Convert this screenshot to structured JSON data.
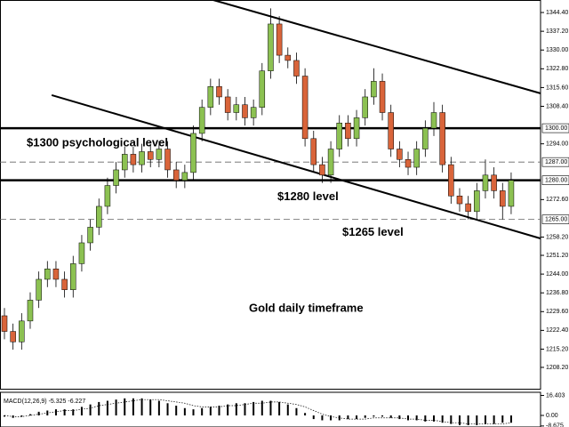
{
  "chart_data": [
    {
      "type": "candlestick",
      "open": [
        1228,
        1222,
        1218,
        1226,
        1234,
        1242,
        1246,
        1242,
        1238,
        1248,
        1256,
        1262,
        1270,
        1278,
        1284,
        1290,
        1286,
        1291,
        1288,
        1292,
        1284,
        1280,
        1283,
        1298,
        1308,
        1316,
        1312,
        1306,
        1309,
        1304,
        1308,
        1322,
        1340,
        1328,
        1326,
        1320,
        1296,
        1286,
        1282,
        1292,
        1302,
        1296,
        1304,
        1312,
        1318,
        1306,
        1292,
        1288,
        1285,
        1292,
        1300,
        1306,
        1286,
        1274,
        1271,
        1268,
        1276,
        1282,
        1276,
        1270
      ],
      "high": [
        1231,
        1225,
        1229,
        1237,
        1245,
        1249,
        1249,
        1245,
        1251,
        1259,
        1265,
        1273,
        1281,
        1287,
        1293,
        1293,
        1294,
        1294,
        1295,
        1295,
        1287,
        1286,
        1301,
        1311,
        1319,
        1319,
        1315,
        1312,
        1312,
        1311,
        1325,
        1346,
        1343,
        1331,
        1329,
        1323,
        1299,
        1289,
        1295,
        1305,
        1305,
        1307,
        1315,
        1323,
        1321,
        1309,
        1295,
        1291,
        1295,
        1303,
        1310,
        1309,
        1289,
        1277,
        1274,
        1279,
        1288,
        1285,
        1279,
        1283
      ],
      "low": [
        1219,
        1215,
        1215,
        1223,
        1231,
        1239,
        1239,
        1235,
        1235,
        1245,
        1253,
        1259,
        1267,
        1275,
        1281,
        1283,
        1283,
        1285,
        1285,
        1281,
        1277,
        1277,
        1280,
        1295,
        1305,
        1309,
        1303,
        1303,
        1301,
        1301,
        1305,
        1319,
        1325,
        1323,
        1317,
        1293,
        1283,
        1279,
        1279,
        1289,
        1293,
        1293,
        1301,
        1309,
        1303,
        1289,
        1285,
        1282,
        1282,
        1289,
        1297,
        1283,
        1271,
        1268,
        1265,
        1265,
        1273,
        1273,
        1265,
        1267
      ],
      "close": [
        1222,
        1218,
        1226,
        1234,
        1242,
        1246,
        1242,
        1238,
        1248,
        1256,
        1262,
        1270,
        1278,
        1284,
        1290,
        1286,
        1291,
        1288,
        1292,
        1284,
        1280,
        1283,
        1298,
        1308,
        1316,
        1312,
        1306,
        1309,
        1304,
        1308,
        1322,
        1340,
        1328,
        1326,
        1320,
        1296,
        1286,
        1282,
        1292,
        1302,
        1296,
        1304,
        1312,
        1318,
        1306,
        1292,
        1288,
        1285,
        1292,
        1300,
        1306,
        1286,
        1274,
        1271,
        1268,
        1276,
        1282,
        1276,
        1270,
        1280
      ],
      "up_color": "#8cc152",
      "down_color": "#d9643a",
      "ylim": [
        1205.8,
        1349.2
      ],
      "yticks": [
        {
          "value": 1344.4,
          "label": "1344.40"
        },
        {
          "value": 1337.2,
          "label": "1337.20"
        },
        {
          "value": 1330,
          "label": "1330.00"
        },
        {
          "value": 1322.8,
          "label": "1322.80"
        },
        {
          "value": 1315.6,
          "label": "1315.60"
        },
        {
          "value": 1308.4,
          "label": "1308.40"
        },
        {
          "value": 1294,
          "label": "1294.00"
        },
        {
          "value": 1272.6,
          "label": "1272.60"
        },
        {
          "value": 1258.2,
          "label": "1258.20"
        },
        {
          "value": 1251.2,
          "label": "1251.20"
        },
        {
          "value": 1244,
          "label": "1244.00"
        },
        {
          "value": 1236.8,
          "label": "1236.80"
        },
        {
          "value": 1229.6,
          "label": "1229.60"
        },
        {
          "value": 1222.4,
          "label": "1222.40"
        },
        {
          "value": 1215.2,
          "label": "1215.20"
        },
        {
          "value": 1208.2,
          "label": "1208.20"
        }
      ],
      "levels": [
        {
          "value": 1300,
          "label": "1300.00",
          "style": "solid",
          "text": "$1300 psychological level"
        },
        {
          "value": 1287,
          "label": "1287.00",
          "style": "dashed"
        },
        {
          "value": 1280,
          "label": "1280.00",
          "style": "solid",
          "text": "$1280 level"
        },
        {
          "value": 1265,
          "label": "1265.00",
          "style": "dashed",
          "text": "$1265 level"
        }
      ],
      "trendlines": [
        {
          "x": [
            24.3,
            62.4
          ],
          "y": [
            1349.2,
            1313.4
          ]
        },
        {
          "x": [
            5.5,
            62.4
          ],
          "y": [
            1312.7,
            1257.7
          ]
        }
      ],
      "annotation": "Gold daily timeframe"
    },
    {
      "type": "macd",
      "title": "MACD(12,26,9) -5.325 -6.227",
      "ylim": [
        -9.5,
        17.5
      ],
      "yticks": [
        {
          "value": 16.403,
          "label": "16.403"
        },
        {
          "value": 0,
          "label": "0.00"
        },
        {
          "value": -8.675,
          "label": "-8.675"
        }
      ],
      "series": [
        {
          "style": "histogram",
          "color": "#000000",
          "values": [
            -1,
            -2,
            -1,
            1,
            3,
            4,
            5,
            5,
            5,
            7,
            9,
            11,
            12,
            13,
            14,
            14,
            14,
            13,
            12,
            10,
            8,
            6,
            5,
            6,
            7,
            8,
            9,
            10,
            10,
            11,
            12,
            12,
            11,
            9,
            6,
            2,
            -3,
            -4,
            -4,
            -4,
            -3,
            -3,
            -2,
            -1,
            -1,
            -2,
            -3,
            -4,
            -4,
            -5,
            -5,
            -6,
            -7,
            -8,
            -8,
            -8,
            -7,
            -7,
            -6,
            -6
          ]
        },
        {
          "style": "dotted",
          "color": "#000000",
          "values": [
            0,
            -1,
            -1,
            0,
            1,
            2,
            3,
            4,
            4,
            5,
            6,
            8,
            9,
            10,
            11,
            12,
            13,
            13,
            13,
            12,
            11,
            10,
            8,
            7,
            7,
            7,
            8,
            8,
            9,
            10,
            10,
            11,
            11,
            10,
            9,
            7,
            4,
            1,
            -1,
            -2,
            -3,
            -3,
            -3,
            -2,
            -2,
            -2,
            -2,
            -3,
            -3,
            -4,
            -4,
            -5,
            -6,
            -6,
            -7,
            -7,
            -7,
            -7,
            -7,
            -6
          ]
        }
      ]
    }
  ]
}
